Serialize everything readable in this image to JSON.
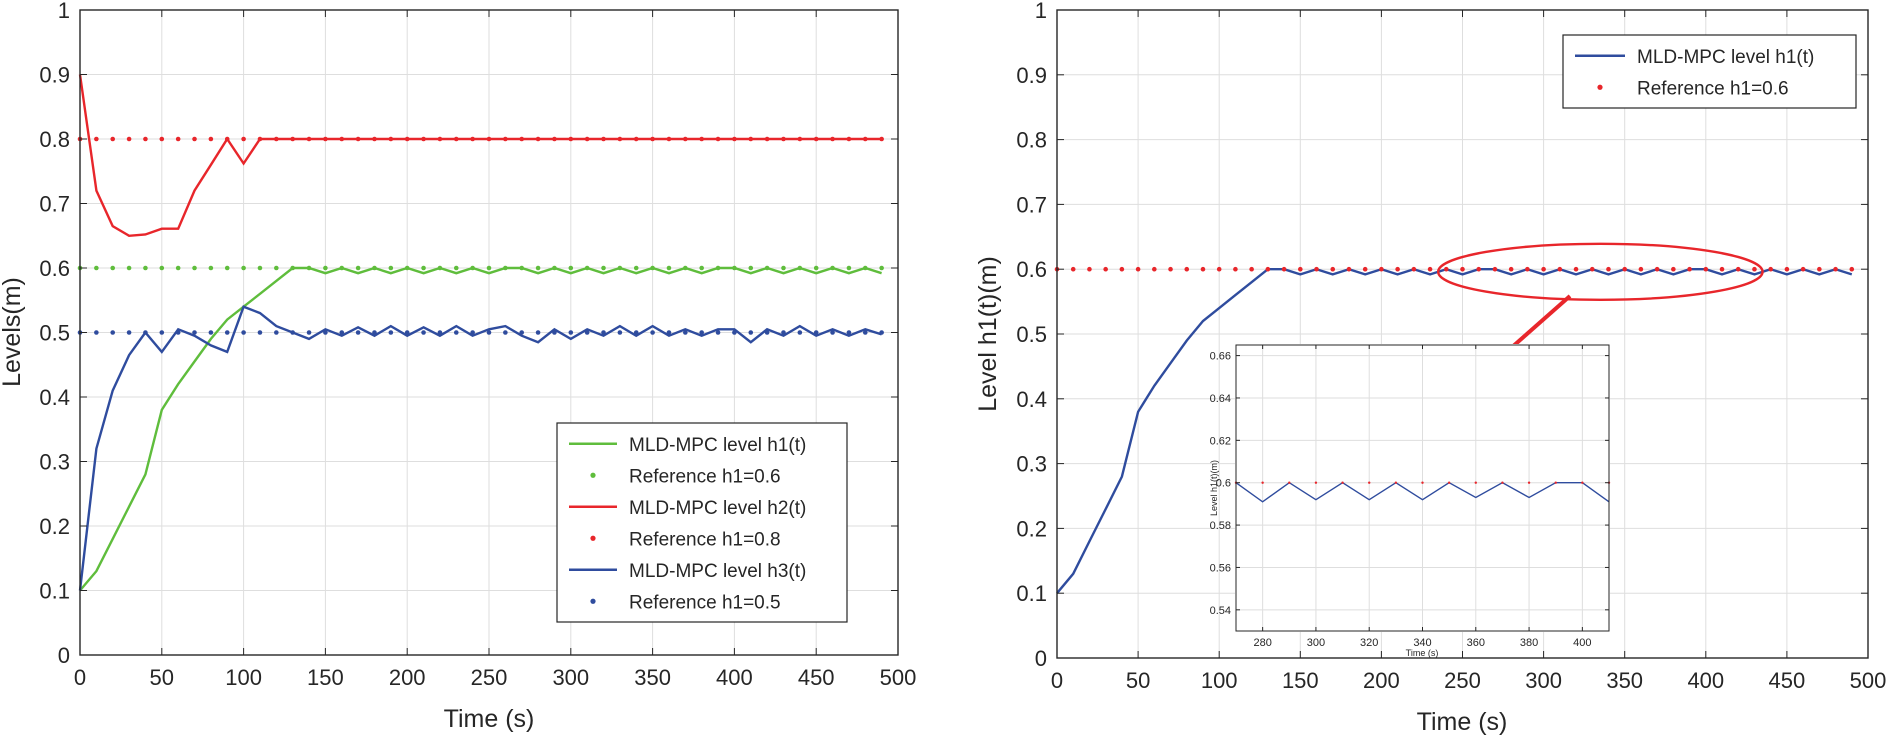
{
  "colors": {
    "green": "#5fbd3c",
    "red": "#e8262b",
    "blue": "#2f4c9e",
    "annotation": "#e8262b"
  },
  "chart_data": [
    {
      "type": "line",
      "name": "left",
      "xlabel": "Time (s)",
      "ylabel": "Levels(m)",
      "xlim": [
        0,
        500
      ],
      "ylim": [
        0,
        1
      ],
      "xticks": [
        0,
        50,
        100,
        150,
        200,
        250,
        300,
        350,
        400,
        450,
        500
      ],
      "yticks": [
        0,
        0.1,
        0.2,
        0.3,
        0.4,
        0.5,
        0.6,
        0.7,
        0.8,
        0.9,
        1
      ],
      "grid": true,
      "legend_position": "bottom-right",
      "series": [
        {
          "name": "MLD-MPC level h1(t)",
          "style": "line",
          "color": "green",
          "x": [
            0,
            10,
            20,
            30,
            40,
            50,
            60,
            70,
            80,
            90,
            100,
            110,
            120,
            130,
            140,
            150,
            160,
            170,
            180,
            190,
            200,
            210,
            220,
            230,
            240,
            250,
            260,
            270,
            280,
            290,
            300,
            310,
            320,
            330,
            340,
            350,
            360,
            370,
            380,
            390,
            400,
            410,
            420,
            430,
            440,
            450,
            460,
            470,
            480,
            490
          ],
          "y": [
            0.1,
            0.13,
            0.18,
            0.23,
            0.28,
            0.38,
            0.42,
            0.455,
            0.49,
            0.52,
            0.54,
            0.56,
            0.58,
            0.6,
            0.6,
            0.592,
            0.6,
            0.592,
            0.6,
            0.592,
            0.6,
            0.592,
            0.6,
            0.592,
            0.6,
            0.592,
            0.6,
            0.6,
            0.592,
            0.6,
            0.592,
            0.6,
            0.592,
            0.6,
            0.592,
            0.6,
            0.592,
            0.6,
            0.592,
            0.6,
            0.6,
            0.592,
            0.6,
            0.592,
            0.6,
            0.592,
            0.6,
            0.592,
            0.6,
            0.592
          ]
        },
        {
          "name": "Reference h1=0.6",
          "style": "dots",
          "color": "green",
          "x": [
            0,
            10,
            20,
            30,
            40,
            50,
            60,
            70,
            80,
            90,
            100,
            110,
            120,
            130,
            140,
            150,
            160,
            170,
            180,
            190,
            200,
            210,
            220,
            230,
            240,
            250,
            260,
            270,
            280,
            290,
            300,
            310,
            320,
            330,
            340,
            350,
            360,
            370,
            380,
            390,
            400,
            410,
            420,
            430,
            440,
            450,
            460,
            470,
            480,
            490
          ],
          "y": [
            0.6,
            0.6,
            0.6,
            0.6,
            0.6,
            0.6,
            0.6,
            0.6,
            0.6,
            0.6,
            0.6,
            0.6,
            0.6,
            0.6,
            0.6,
            0.6,
            0.6,
            0.6,
            0.6,
            0.6,
            0.6,
            0.6,
            0.6,
            0.6,
            0.6,
            0.6,
            0.6,
            0.6,
            0.6,
            0.6,
            0.6,
            0.6,
            0.6,
            0.6,
            0.6,
            0.6,
            0.6,
            0.6,
            0.6,
            0.6,
            0.6,
            0.6,
            0.6,
            0.6,
            0.6,
            0.6,
            0.6,
            0.6,
            0.6,
            0.6
          ]
        },
        {
          "name": "MLD-MPC level h2(t)",
          "style": "line",
          "color": "red",
          "x": [
            0,
            10,
            20,
            30,
            40,
            50,
            60,
            70,
            80,
            90,
            100,
            110,
            120,
            130,
            140,
            150,
            160,
            170,
            180,
            190,
            200,
            210,
            220,
            230,
            240,
            250,
            260,
            270,
            280,
            290,
            300,
            310,
            320,
            330,
            340,
            350,
            360,
            370,
            380,
            390,
            400,
            410,
            420,
            430,
            440,
            450,
            460,
            470,
            480,
            490
          ],
          "y": [
            0.9,
            0.72,
            0.665,
            0.65,
            0.652,
            0.661,
            0.661,
            0.72,
            0.76,
            0.8,
            0.762,
            0.8,
            0.8,
            0.8,
            0.8,
            0.8,
            0.8,
            0.8,
            0.8,
            0.8,
            0.8,
            0.8,
            0.8,
            0.8,
            0.8,
            0.8,
            0.8,
            0.8,
            0.8,
            0.8,
            0.8,
            0.8,
            0.8,
            0.8,
            0.8,
            0.8,
            0.8,
            0.8,
            0.8,
            0.8,
            0.8,
            0.8,
            0.8,
            0.8,
            0.8,
            0.8,
            0.8,
            0.8,
            0.8,
            0.8
          ]
        },
        {
          "name": "Reference h1=0.8",
          "style": "dots",
          "color": "red",
          "x": [
            0,
            10,
            20,
            30,
            40,
            50,
            60,
            70,
            80,
            90,
            100,
            110,
            120,
            130,
            140,
            150,
            160,
            170,
            180,
            190,
            200,
            210,
            220,
            230,
            240,
            250,
            260,
            270,
            280,
            290,
            300,
            310,
            320,
            330,
            340,
            350,
            360,
            370,
            380,
            390,
            400,
            410,
            420,
            430,
            440,
            450,
            460,
            470,
            480,
            490
          ],
          "y": [
            0.8,
            0.8,
            0.8,
            0.8,
            0.8,
            0.8,
            0.8,
            0.8,
            0.8,
            0.8,
            0.8,
            0.8,
            0.8,
            0.8,
            0.8,
            0.8,
            0.8,
            0.8,
            0.8,
            0.8,
            0.8,
            0.8,
            0.8,
            0.8,
            0.8,
            0.8,
            0.8,
            0.8,
            0.8,
            0.8,
            0.8,
            0.8,
            0.8,
            0.8,
            0.8,
            0.8,
            0.8,
            0.8,
            0.8,
            0.8,
            0.8,
            0.8,
            0.8,
            0.8,
            0.8,
            0.8,
            0.8,
            0.8,
            0.8,
            0.8
          ]
        },
        {
          "name": "MLD-MPC level h3(t)",
          "style": "line",
          "color": "blue",
          "x": [
            0,
            10,
            20,
            30,
            40,
            50,
            60,
            70,
            80,
            90,
            100,
            110,
            120,
            130,
            140,
            150,
            160,
            170,
            180,
            190,
            200,
            210,
            220,
            230,
            240,
            250,
            260,
            270,
            280,
            290,
            300,
            310,
            320,
            330,
            340,
            350,
            360,
            370,
            380,
            390,
            400,
            410,
            420,
            430,
            440,
            450,
            460,
            470,
            480,
            490
          ],
          "y": [
            0.1,
            0.32,
            0.41,
            0.465,
            0.5,
            0.47,
            0.505,
            0.495,
            0.48,
            0.47,
            0.54,
            0.53,
            0.51,
            0.5,
            0.49,
            0.505,
            0.495,
            0.508,
            0.495,
            0.51,
            0.495,
            0.508,
            0.495,
            0.51,
            0.495,
            0.505,
            0.51,
            0.495,
            0.485,
            0.505,
            0.49,
            0.505,
            0.495,
            0.51,
            0.495,
            0.51,
            0.495,
            0.505,
            0.495,
            0.505,
            0.505,
            0.485,
            0.505,
            0.495,
            0.51,
            0.495,
            0.505,
            0.495,
            0.505,
            0.497
          ]
        },
        {
          "name": "Reference h1=0.5",
          "style": "dots",
          "color": "blue",
          "x": [
            0,
            10,
            20,
            30,
            40,
            50,
            60,
            70,
            80,
            90,
            100,
            110,
            120,
            130,
            140,
            150,
            160,
            170,
            180,
            190,
            200,
            210,
            220,
            230,
            240,
            250,
            260,
            270,
            280,
            290,
            300,
            310,
            320,
            330,
            340,
            350,
            360,
            370,
            380,
            390,
            400,
            410,
            420,
            430,
            440,
            450,
            460,
            470,
            480,
            490
          ],
          "y": [
            0.5,
            0.5,
            0.5,
            0.5,
            0.5,
            0.5,
            0.5,
            0.5,
            0.5,
            0.5,
            0.5,
            0.5,
            0.5,
            0.5,
            0.5,
            0.5,
            0.5,
            0.5,
            0.5,
            0.5,
            0.5,
            0.5,
            0.5,
            0.5,
            0.5,
            0.5,
            0.5,
            0.5,
            0.5,
            0.5,
            0.5,
            0.5,
            0.5,
            0.5,
            0.5,
            0.5,
            0.5,
            0.5,
            0.5,
            0.5,
            0.5,
            0.5,
            0.5,
            0.5,
            0.5,
            0.5,
            0.5,
            0.5,
            0.5,
            0.5
          ]
        }
      ]
    },
    {
      "type": "line",
      "name": "right",
      "xlabel": "Time (s)",
      "ylabel": "Level h1(t)(m)",
      "xlim": [
        0,
        500
      ],
      "ylim": [
        0,
        1
      ],
      "xticks": [
        0,
        50,
        100,
        150,
        200,
        250,
        300,
        350,
        400,
        450,
        500
      ],
      "yticks": [
        0,
        0.1,
        0.2,
        0.3,
        0.4,
        0.5,
        0.6,
        0.7,
        0.8,
        0.9,
        1
      ],
      "grid": true,
      "legend_position": "top-right",
      "series": [
        {
          "name": "MLD-MPC level h1(t)",
          "style": "line",
          "color": "blue",
          "x": [
            0,
            10,
            20,
            30,
            40,
            50,
            60,
            70,
            80,
            90,
            100,
            110,
            120,
            130,
            140,
            150,
            160,
            170,
            180,
            190,
            200,
            210,
            220,
            230,
            240,
            250,
            260,
            270,
            280,
            290,
            300,
            310,
            320,
            330,
            340,
            350,
            360,
            370,
            380,
            390,
            400,
            410,
            420,
            430,
            440,
            450,
            460,
            470,
            480,
            490
          ],
          "y": [
            0.1,
            0.13,
            0.18,
            0.23,
            0.28,
            0.38,
            0.42,
            0.455,
            0.49,
            0.52,
            0.54,
            0.56,
            0.58,
            0.6,
            0.6,
            0.592,
            0.6,
            0.592,
            0.6,
            0.592,
            0.6,
            0.592,
            0.6,
            0.592,
            0.6,
            0.592,
            0.6,
            0.6,
            0.592,
            0.6,
            0.592,
            0.6,
            0.592,
            0.6,
            0.592,
            0.6,
            0.592,
            0.6,
            0.592,
            0.6,
            0.6,
            0.592,
            0.6,
            0.592,
            0.6,
            0.592,
            0.6,
            0.592,
            0.6,
            0.592
          ]
        },
        {
          "name": "Reference h1=0.6",
          "style": "dots",
          "color": "red",
          "x": [
            0,
            10,
            20,
            30,
            40,
            50,
            60,
            70,
            80,
            90,
            100,
            110,
            120,
            130,
            140,
            150,
            160,
            170,
            180,
            190,
            200,
            210,
            220,
            230,
            240,
            250,
            260,
            270,
            280,
            290,
            300,
            310,
            320,
            330,
            340,
            350,
            360,
            370,
            380,
            390,
            400,
            410,
            420,
            430,
            440,
            450,
            460,
            470,
            480,
            490
          ],
          "y": [
            0.6,
            0.6,
            0.6,
            0.6,
            0.6,
            0.6,
            0.6,
            0.6,
            0.6,
            0.6,
            0.6,
            0.6,
            0.6,
            0.6,
            0.6,
            0.6,
            0.6,
            0.6,
            0.6,
            0.6,
            0.6,
            0.6,
            0.6,
            0.6,
            0.6,
            0.6,
            0.6,
            0.6,
            0.6,
            0.6,
            0.6,
            0.6,
            0.6,
            0.6,
            0.6,
            0.6,
            0.6,
            0.6,
            0.6,
            0.6,
            0.6,
            0.6,
            0.6,
            0.6,
            0.6,
            0.6,
            0.6,
            0.6,
            0.6,
            0.6
          ]
        }
      ]
    },
    {
      "type": "line",
      "name": "inset",
      "xlabel": "Time (s)",
      "ylabel": "Level h1(t)(m)",
      "xlim": [
        270,
        410
      ],
      "ylim": [
        0.53,
        0.665
      ],
      "xticks": [
        280,
        300,
        320,
        340,
        360,
        380,
        400
      ],
      "yticks": [
        0.54,
        0.56,
        0.58,
        0.6,
        0.62,
        0.64,
        0.66
      ],
      "grid": true,
      "series": [
        {
          "name": "MLD-MPC level h1(t)",
          "style": "line",
          "color": "blue",
          "x": [
            270,
            280,
            290,
            300,
            310,
            320,
            330,
            340,
            350,
            360,
            370,
            380,
            390,
            400,
            410
          ],
          "y": [
            0.6,
            0.591,
            0.6,
            0.592,
            0.6,
            0.592,
            0.6,
            0.592,
            0.6,
            0.593,
            0.6,
            0.593,
            0.6,
            0.6,
            0.591
          ]
        },
        {
          "name": "Reference h1=0.6",
          "style": "dots",
          "color": "red",
          "x": [
            270,
            280,
            290,
            300,
            310,
            320,
            330,
            340,
            350,
            360,
            370,
            380,
            390,
            400,
            410
          ],
          "y": [
            0.6,
            0.6,
            0.6,
            0.6,
            0.6,
            0.6,
            0.6,
            0.6,
            0.6,
            0.6,
            0.6,
            0.6,
            0.6,
            0.6,
            0.6
          ]
        }
      ]
    }
  ]
}
